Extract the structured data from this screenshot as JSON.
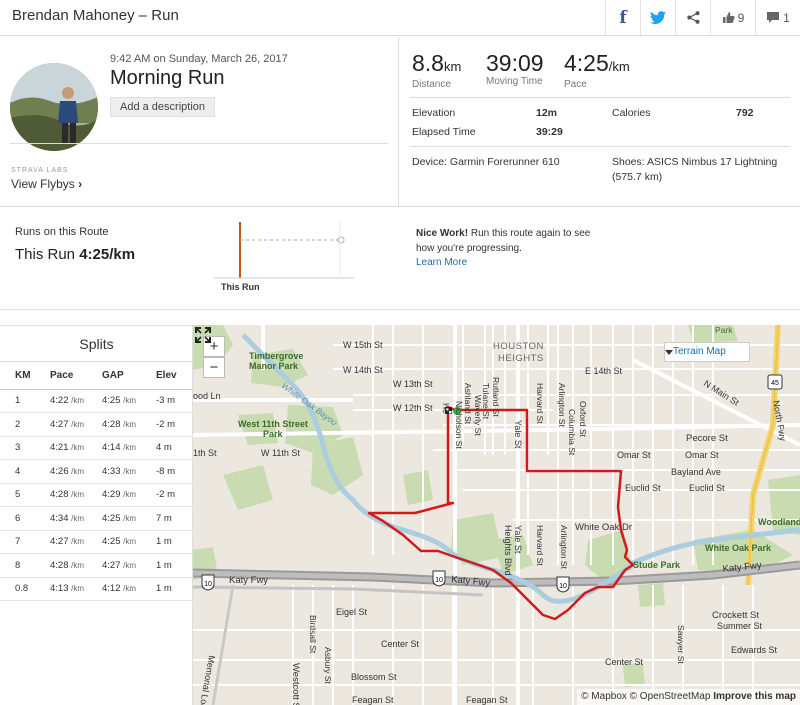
{
  "header": {
    "title": "Brendan Mahoney – Run",
    "kudos_count": "9",
    "comment_count": "1"
  },
  "activity": {
    "datetime": "9:42 AM on Sunday, March 26, 2017",
    "title": "Morning Run",
    "add_description": "Add a description",
    "labs_label": "STRAVA LABS",
    "view_flybys": "View Flybys",
    "chevron": "›"
  },
  "stats": {
    "distance_value": "8.8",
    "distance_unit": "km",
    "distance_label": "Distance",
    "moving_value": "39:09",
    "moving_label": "Moving Time",
    "pace_value": "4:25",
    "pace_unit": "/km",
    "pace_label": "Pace",
    "elevation_label": "Elevation",
    "elevation_value": "12m",
    "calories_label": "Calories",
    "calories_value": "792",
    "elapsed_label": "Elapsed Time",
    "elapsed_value": "39:29",
    "device": "Device: Garmin Forerunner 610",
    "shoes_line1": "Shoes: ASICS Nimbus 17 Lightning",
    "shoes_line2": "(575.7 km)"
  },
  "route": {
    "heading": "Runs on this Route",
    "this_run_label": "This Run",
    "this_run_pace": "4:25/km",
    "axis_label": "This Run",
    "nice_bold": "Nice Work!",
    "nice_text": " Run this route again to see how you're progressing.",
    "learn_more": "Learn More"
  },
  "splits": {
    "title": "Splits",
    "columns": [
      "KM",
      "Pace",
      "GAP",
      "Elev"
    ],
    "pace_unit": "/km",
    "rows": [
      {
        "km": "1",
        "pace": "4:22",
        "gap": "4:25",
        "elev": "-3 m"
      },
      {
        "km": "2",
        "pace": "4:27",
        "gap": "4:28",
        "elev": "-2 m"
      },
      {
        "km": "3",
        "pace": "4:21",
        "gap": "4:14",
        "elev": "4 m"
      },
      {
        "km": "4",
        "pace": "4:26",
        "gap": "4:33",
        "elev": "-8 m"
      },
      {
        "km": "5",
        "pace": "4:28",
        "gap": "4:29",
        "elev": "-2 m"
      },
      {
        "km": "6",
        "pace": "4:34",
        "gap": "4:25",
        "elev": "7 m"
      },
      {
        "km": "7",
        "pace": "4:27",
        "gap": "4:25",
        "elev": "1 m"
      },
      {
        "km": "8",
        "pace": "4:28",
        "gap": "4:27",
        "elev": "1 m"
      },
      {
        "km": "0.8",
        "pace": "4:13",
        "gap": "4:12",
        "elev": "1 m"
      }
    ]
  },
  "map": {
    "zoom_in": "+",
    "zoom_out": "−",
    "map_type": "Terrain Map",
    "attribution": "© Mapbox © OpenStreetMap",
    "improve": "Improve this map",
    "labels": {
      "park_top": "Park",
      "w15": "W 15th St",
      "houston": "HOUSTON",
      "heights": "HEIGHTS",
      "timbergrove1": "Timbergrove",
      "timbergrove2": "Manor Park",
      "w14": "W 14th St",
      "e14": "E 14th St",
      "nmain": "N Main St",
      "hwy45": "45",
      "north_fwy": "North Fwy",
      "ood_ln": "ood Ln",
      "w13": "W 13th St",
      "w12": "W 12th St",
      "white_oak_bayou": "White Oak Bayou",
      "w11park1": "West 11th Street",
      "w11park2": "Park",
      "th11": "1th St",
      "w11": "W 11th St",
      "rutland": "Rutland St",
      "tulane": "Tulane St",
      "ashland": "Ashland St",
      "heights_blvd_top": "Heights Blvd",
      "harvard_top": "Harvard St",
      "arlington_top": "Arlington St",
      "oxford": "Oxford St",
      "columbia": "Columbia St",
      "yale": "Yale St",
      "pecore": "Pecore St",
      "omar_w": "Omar St",
      "omar_e": "Omar St",
      "bayland": "Bayland Ave",
      "euclid_w": "Euclid St",
      "euclid_e": "Euclid St",
      "white_oak_dr": "White Oak Dr",
      "woodland": "Woodland",
      "white_oak_park": "White Oak Park",
      "harvard_bot": "Harvard St",
      "heights_bot": "Heights Blvd",
      "yale_bot": "Yale St",
      "arlington_bot": "Arlington St",
      "stude": "Stude Park",
      "katy_w": "Katy Fwy",
      "katy_mid": "Katy Fwy",
      "katy_e": "Katy Fwy",
      "i10a": "10",
      "i10b": "10",
      "i10c": "10",
      "eigel": "Eigel St",
      "center_w": "Center St",
      "center_e": "Center St",
      "crockett": "Crockett St",
      "summer": "Summer St",
      "edwards": "Edwards St",
      "sawyer": "Sawyer St",
      "birdsall": "Birdsall St",
      "asbury": "Asbury St",
      "westcott": "Westcott St",
      "memorial": "Memorial Loop",
      "blossom": "Blossom St",
      "feagan_w": "Feagan St",
      "feagan_e": "Feagan St",
      "hoff_w": "Hc",
      "nicholson": "Nicholson St",
      "waverly": "Waverly St"
    }
  }
}
